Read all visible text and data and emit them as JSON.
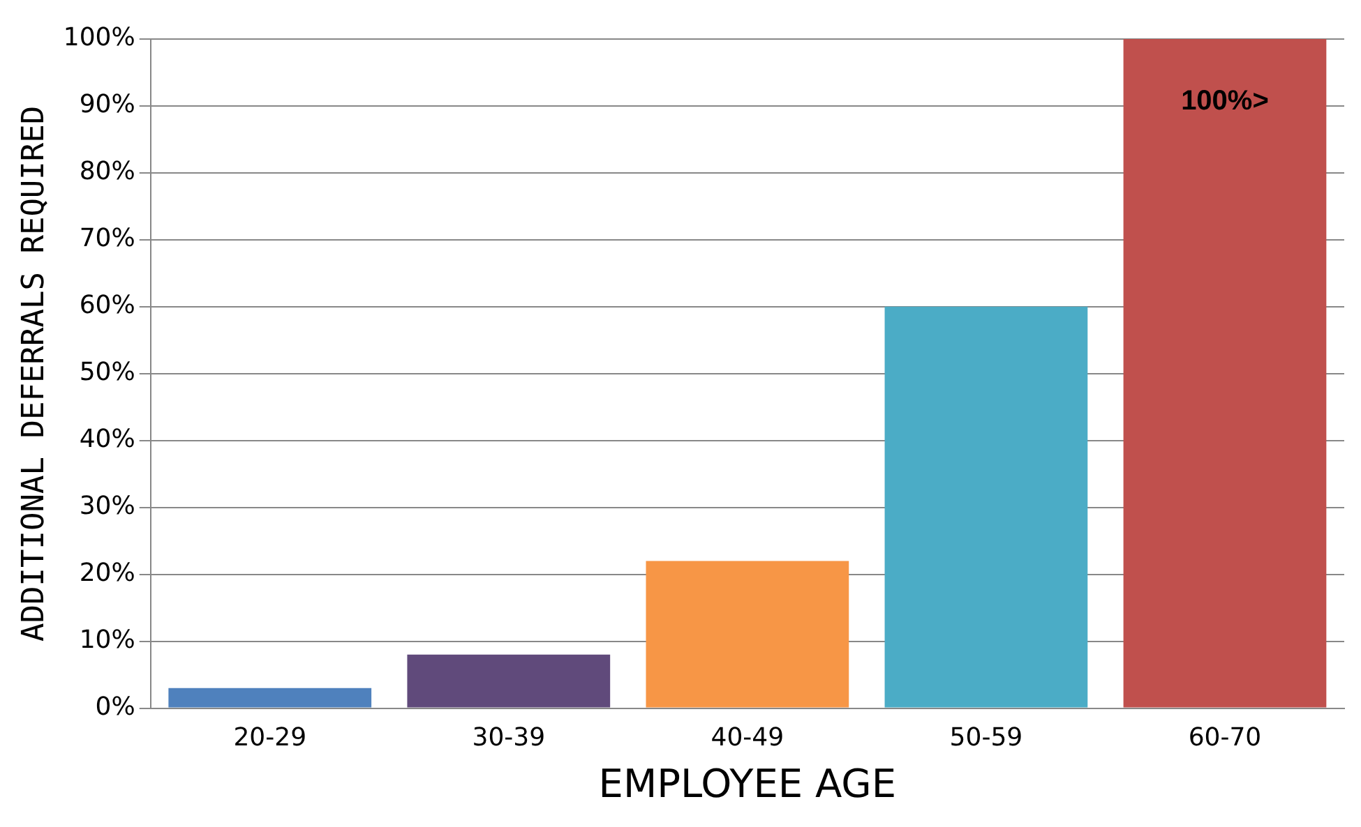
{
  "chart_data": {
    "type": "bar",
    "xlabel": "EMPLOYEE AGE",
    "ylabel": "ADDITIONAL DEFERRALS REQUIRED",
    "categories": [
      "20-29",
      "30-39",
      "40-49",
      "50-59",
      "60-70"
    ],
    "values": [
      3,
      8,
      22,
      60,
      100
    ],
    "colors": [
      "#4f81bd",
      "#604a7b",
      "#f79646",
      "#4bacc6",
      "#c0504d"
    ],
    "ylim": [
      0,
      100
    ],
    "yticks": [
      {
        "value": 0,
        "label": "0%"
      },
      {
        "value": 10,
        "label": "10%"
      },
      {
        "value": 20,
        "label": "20%"
      },
      {
        "value": 30,
        "label": "30%"
      },
      {
        "value": 40,
        "label": "40%"
      },
      {
        "value": 50,
        "label": "50%"
      },
      {
        "value": 60,
        "label": "60%"
      },
      {
        "value": 70,
        "label": "70%"
      },
      {
        "value": 80,
        "label": "80%"
      },
      {
        "value": 90,
        "label": "90%"
      },
      {
        "value": 100,
        "label": "100%"
      }
    ],
    "grid": "y",
    "legend": false,
    "annotations": [
      "100%>"
    ]
  }
}
